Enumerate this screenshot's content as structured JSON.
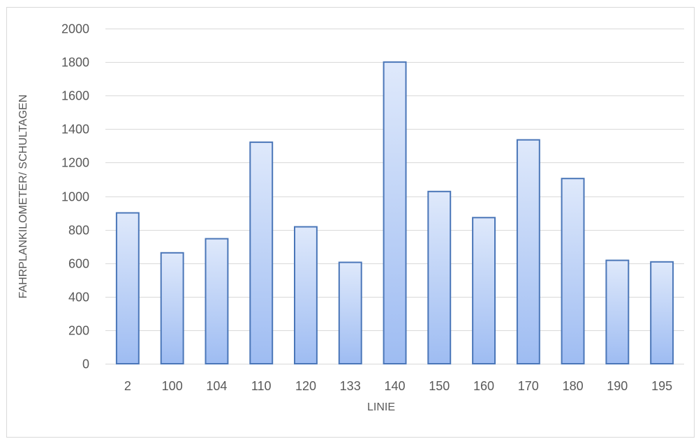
{
  "chart_data": {
    "type": "bar",
    "categories": [
      "2",
      "100",
      "104",
      "110",
      "120",
      "133",
      "140",
      "150",
      "160",
      "170",
      "180",
      "190",
      "195"
    ],
    "values": [
      900,
      662,
      746,
      1322,
      817,
      605,
      1800,
      1028,
      872,
      1336,
      1105,
      617,
      608
    ],
    "xlabel": "LINIE",
    "ylabel": "FAHRPLANKILOMETER/ SCHULTAGEN",
    "ylim": [
      0,
      2000
    ],
    "yticks": [
      0,
      200,
      400,
      600,
      800,
      1000,
      1200,
      1400,
      1600,
      1800,
      2000
    ],
    "grid": true,
    "legend": "none",
    "colors": {
      "bar_fill_top": "#dfe9fb",
      "bar_fill_bottom": "#9ebcf2",
      "bar_border": "#4a76b8",
      "grid": "#d9d9d9",
      "text": "#595959"
    }
  }
}
